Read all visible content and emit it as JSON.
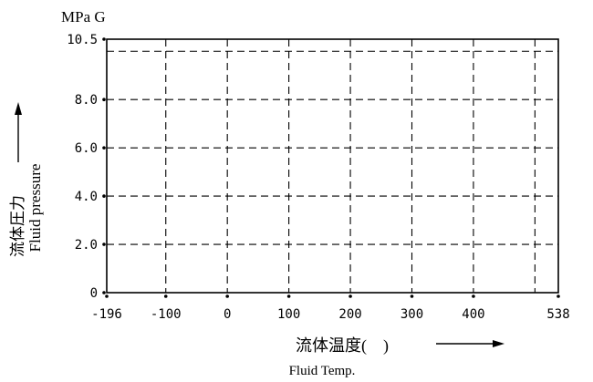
{
  "chart_data": {
    "type": "line",
    "unit_label": "MPa G",
    "ylabel_jp": "流体圧力",
    "ylabel_en": "Fluid pressure",
    "xlabel_jp": "流体温度(　)",
    "xlabel_en": "Fluid Temp.",
    "xlim": [
      -196,
      538
    ],
    "ylim": [
      0,
      10.5
    ],
    "x_ticks": [
      -196,
      -100,
      0,
      100,
      200,
      300,
      400,
      538
    ],
    "x_tick_labels": [
      "-196",
      "-100",
      "0",
      "100",
      "200",
      "300",
      "400",
      "538"
    ],
    "y_ticks": [
      0,
      2.0,
      4.0,
      6.0,
      8.0,
      10.5
    ],
    "y_tick_labels": [
      "0",
      "2.0",
      "4.0",
      "6.0",
      "8.0",
      "10.5"
    ],
    "x_grid_values": [
      -100,
      0,
      100,
      200,
      300,
      400,
      500
    ],
    "y_grid_values": [
      2.0,
      4.0,
      6.0,
      8.0,
      10.0
    ],
    "grid": true,
    "series": []
  }
}
